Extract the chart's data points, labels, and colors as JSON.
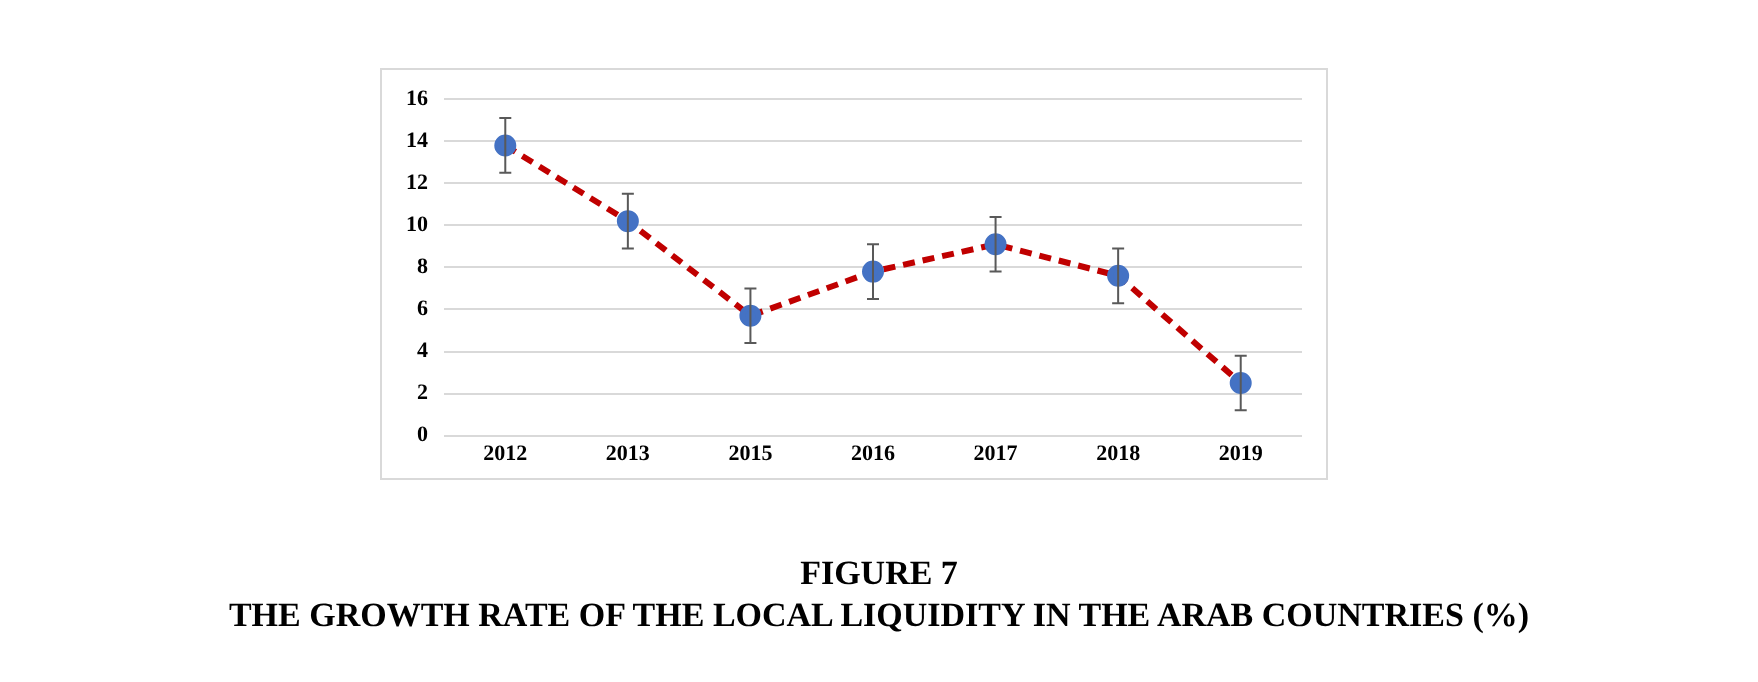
{
  "chart_data": {
    "type": "line",
    "title": "FIGURE 7",
    "subtitle": "THE GROWTH RATE OF THE LOCAL LIQUIDITY IN THE ARAB COUNTRIES (%)",
    "categories": [
      "2012",
      "2013",
      "2015",
      "2016",
      "2017",
      "2018",
      "2019"
    ],
    "series": [
      {
        "color": "#c00000",
        "colors": [
          "#4472c4",
          "#4472c4",
          "#4472c4",
          "#4472c4",
          "#4472c4",
          "#4472c4",
          "#4472c4"
        ],
        "values": [
          13.8,
          10.2,
          5.7,
          7.8,
          9.1,
          7.6,
          2.5
        ],
        "errors": [
          1.3,
          1.3,
          1.3,
          1.3,
          1.3,
          1.3,
          1.3
        ]
      }
    ],
    "ylim": [
      0,
      16
    ],
    "yticks": [
      0,
      2,
      4,
      6,
      8,
      10,
      12,
      14,
      16
    ],
    "grid": "y",
    "legend": false,
    "marker": "circle",
    "line_style": "dashed"
  }
}
